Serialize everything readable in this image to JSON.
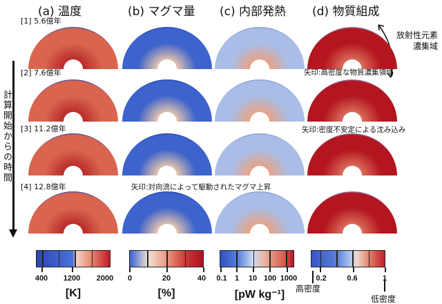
{
  "columns": [
    {
      "title": "(a) 温度",
      "colors": [
        "#2c4fb5",
        "#d9654e",
        "#b82a2a"
      ]
    },
    {
      "title": "(b) マグマ量",
      "colors": [
        "#233fa8",
        "#3d63cc",
        "#e7c6ad"
      ]
    },
    {
      "title": "(c) 内部発熱",
      "colors": [
        "#7b97d6",
        "#a9bde6",
        "#eaa283"
      ]
    },
    {
      "title": "(d) 物質組成",
      "colors": [
        "#7f95d0",
        "#b3161f",
        "#dc6e5c"
      ]
    }
  ],
  "rows": [
    {
      "label": "[1] 5.6億年"
    },
    {
      "label": "[2] 7.6億年"
    },
    {
      "label": "[3] 11.2億年"
    },
    {
      "label": "[4] 12.8億年"
    }
  ],
  "time_axis_label": "計算開始からの時間",
  "annotations": {
    "radio_line1": "放射性元素",
    "radio_line2": "濃集域",
    "row2_note": "矢印:高密度な物質濃集領域",
    "row3_note": "矢印:密度不安定による沈み込み",
    "row4_note": "矢印:対向流によって駆動されたマグマ上昇"
  },
  "colorbars": [
    {
      "ticks": [
        "400",
        "1200",
        "2000"
      ],
      "unit": "[K]"
    },
    {
      "ticks": [
        "0",
        "20",
        "40"
      ],
      "unit": "[%]"
    },
    {
      "ticks": [
        "0.1",
        "1",
        "10",
        "100",
        "1000"
      ],
      "unit": "[pW kg⁻¹]"
    },
    {
      "ticks": [
        "0.2",
        "0.6",
        "1"
      ],
      "unit": "",
      "high_density": "高密度",
      "low_density": "低密度"
    }
  ]
}
